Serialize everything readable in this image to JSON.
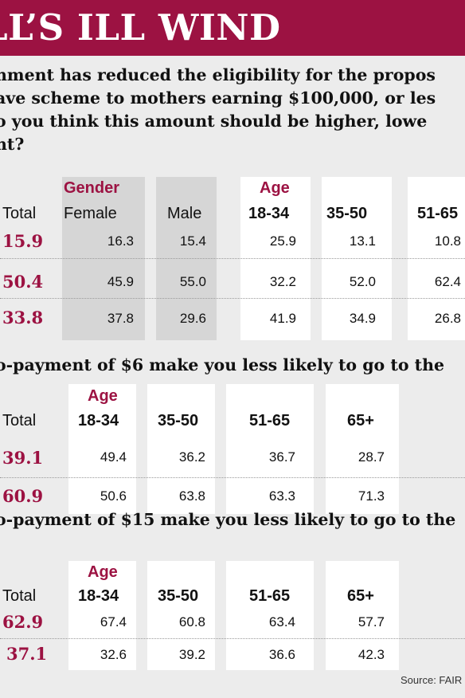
{
  "header": {
    "title": "LL’S ILL WIND"
  },
  "sections": [
    {
      "question": [
        "nment has reduced the eligibility for the propos",
        "ave scheme to mothers earning $100,000, or les",
        "o you think this amount should be higher, lowe",
        "ht?"
      ],
      "groups": [
        "Gender",
        "Age"
      ],
      "columns": [
        "Total",
        "Female",
        "Male",
        "18-34",
        "35-50",
        "51-65"
      ],
      "rows": [
        [
          "15.9",
          "16.3",
          "15.4",
          "25.9",
          "13.1",
          "10.8"
        ],
        [
          "50.4",
          "45.9",
          "55.0",
          "32.2",
          "52.0",
          "62.4"
        ],
        [
          "33.8",
          "37.8",
          "29.6",
          "41.9",
          "34.9",
          "26.8"
        ]
      ]
    },
    {
      "question": [
        "o-payment of $6 make you less likely to go to the"
      ],
      "groups": [
        "Age"
      ],
      "columns": [
        "Total",
        "18-34",
        "35-50",
        "51-65",
        "65+"
      ],
      "rows": [
        [
          "39.1",
          "49.4",
          "36.2",
          "36.7",
          "28.7"
        ],
        [
          "60.9",
          "50.6",
          "63.8",
          "63.3",
          "71.3"
        ]
      ]
    },
    {
      "question": [
        "o-payment of $15 make you less likely to go to the"
      ],
      "groups": [
        "Age"
      ],
      "columns": [
        "Total",
        "18-34",
        "35-50",
        "51-65",
        "65+"
      ],
      "rows": [
        [
          "62.9",
          "67.4",
          "60.8",
          "63.4",
          "57.7"
        ],
        [
          "37.1",
          "32.6",
          "39.2",
          "36.6",
          "42.3"
        ]
      ]
    }
  ],
  "source": "Source: FAIR"
}
